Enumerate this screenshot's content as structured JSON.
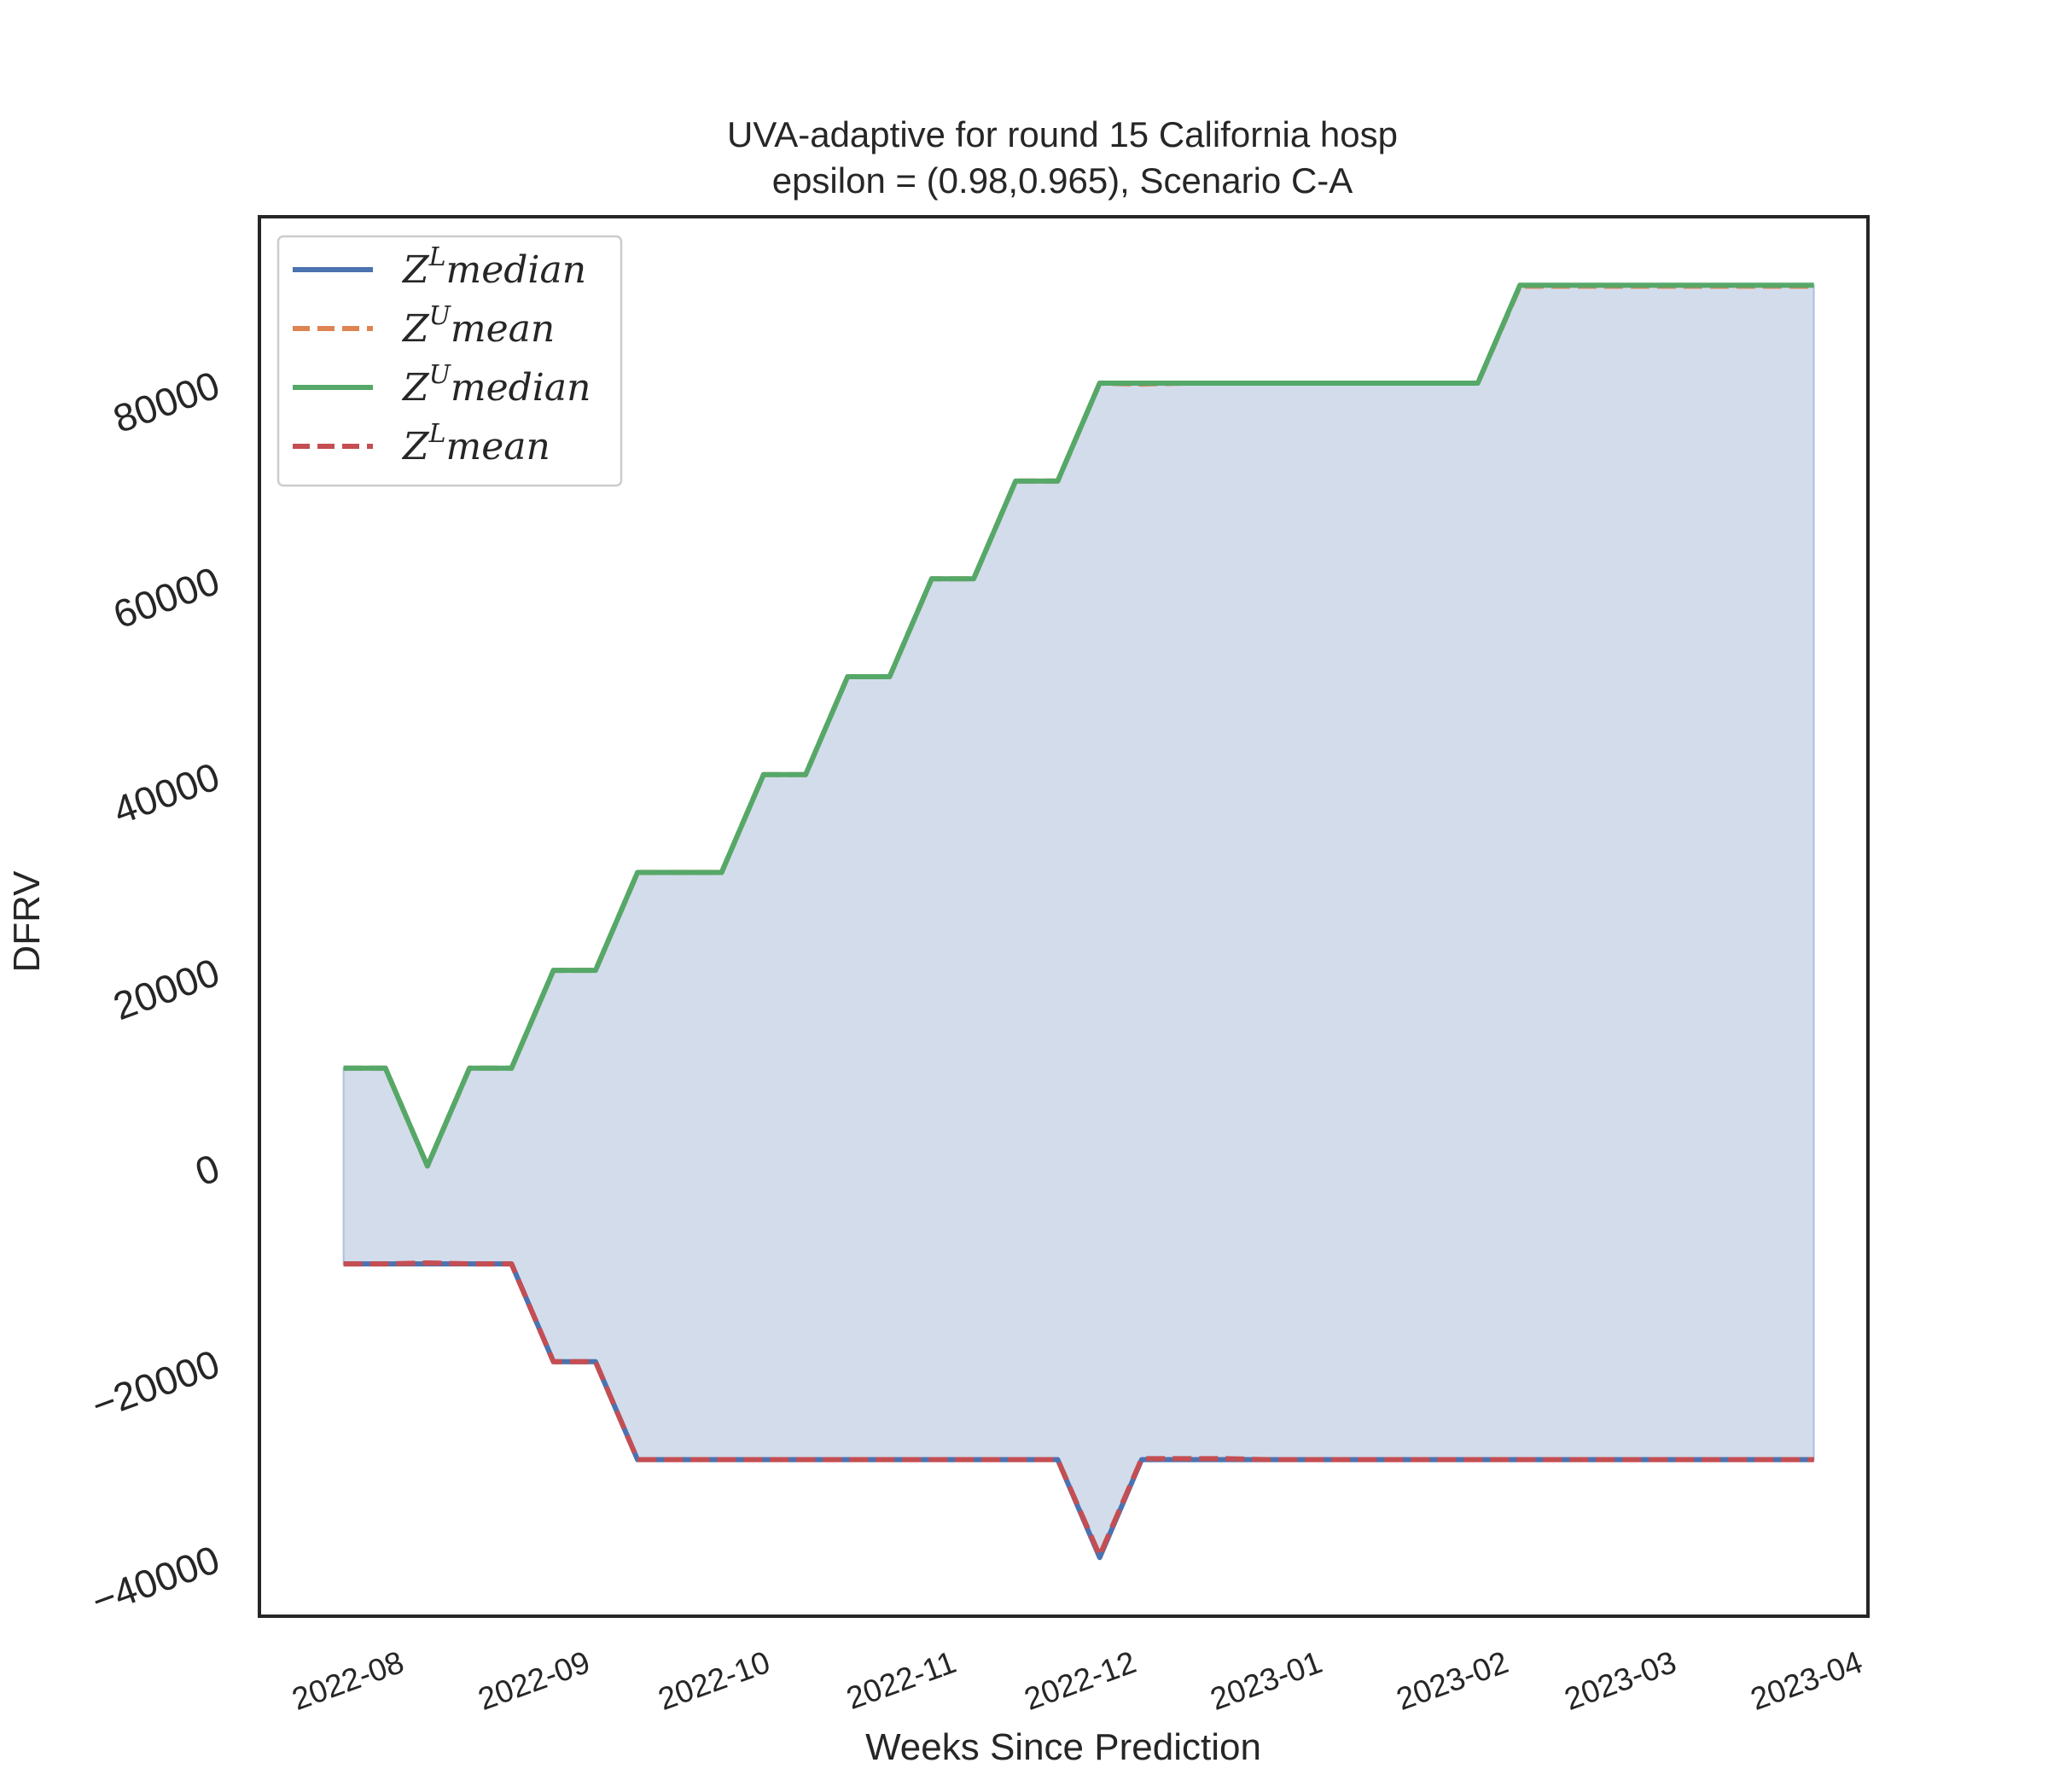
{
  "chart_data": {
    "type": "line",
    "title": [
      "UVA-adaptive for round 15 California  hosp",
      "epsilon = (0.98,0.965), Scenario C-A"
    ],
    "xlabel": "Weeks Since Prediction",
    "ylabel": "DFRV",
    "x_ticks": [
      "2022-08",
      "2022-09",
      "2022-10",
      "2022-11",
      "2022-12",
      "2023-01",
      "2023-02",
      "2023-03",
      "2023-04"
    ],
    "y_ticks": [
      -40000,
      -20000,
      0,
      20000,
      40000,
      60000,
      80000
    ],
    "xlim": [
      "2022-07-09",
      "2023-04-03"
    ],
    "ylim": [
      -46000,
      97000
    ],
    "grid": false,
    "legend_position": "top-left",
    "x": [
      "2022-07-23",
      "2022-07-30",
      "2022-08-06",
      "2022-08-13",
      "2022-08-20",
      "2022-08-27",
      "2022-09-03",
      "2022-09-10",
      "2022-09-17",
      "2022-09-24",
      "2022-10-01",
      "2022-10-08",
      "2022-10-15",
      "2022-10-22",
      "2022-10-29",
      "2022-11-05",
      "2022-11-12",
      "2022-11-19",
      "2022-11-26",
      "2022-12-03",
      "2022-12-10",
      "2022-12-17",
      "2022-12-24",
      "2022-12-31",
      "2023-01-07",
      "2023-01-14",
      "2023-01-21",
      "2023-01-28",
      "2023-02-04",
      "2023-02-11",
      "2023-02-18",
      "2023-02-25",
      "2023-03-04",
      "2023-03-11",
      "2023-03-18",
      "2023-03-25"
    ],
    "series": [
      {
        "name": "$Z^Lmedian$",
        "color": "#4c72b0",
        "style": "solid",
        "values": [
          -10000,
          -10000,
          -10000,
          -10000,
          -10000,
          -20000,
          -20000,
          -30000,
          -30000,
          -30000,
          -30000,
          -30000,
          -30000,
          -30000,
          -30000,
          -30000,
          -30000,
          -30000,
          -40000,
          -30000,
          -30000,
          -30000,
          -30000,
          -30000,
          -30000,
          -30000,
          -30000,
          -30000,
          -30000,
          -30000,
          -30000,
          -30000,
          -30000,
          -30000,
          -30000,
          -30000
        ]
      },
      {
        "name": "$Z^Umean$",
        "color": "#dd8452",
        "style": "dashed",
        "values": [
          10000,
          10000,
          0,
          10000,
          10000,
          20000,
          20000,
          30000,
          30000,
          30000,
          40000,
          40000,
          50000,
          50000,
          60000,
          60000,
          70000,
          70000,
          80000,
          79900,
          80000,
          80000,
          80000,
          80000,
          80000,
          80000,
          80000,
          80000,
          89900,
          89900,
          89900,
          89900,
          89900,
          89900,
          89900,
          89900
        ]
      },
      {
        "name": "$Z^Umedian$",
        "color": "#55a868",
        "style": "solid",
        "values": [
          10000,
          10000,
          0,
          10000,
          10000,
          20000,
          20000,
          30000,
          30000,
          30000,
          40000,
          40000,
          50000,
          50000,
          60000,
          60000,
          70000,
          70000,
          80000,
          80000,
          80000,
          80000,
          80000,
          80000,
          80000,
          80000,
          80000,
          80000,
          90000,
          90000,
          90000,
          90000,
          90000,
          90000,
          90000,
          90000
        ]
      },
      {
        "name": "$Z^Lmean$",
        "color": "#c44e52",
        "style": "dashed",
        "values": [
          -10000,
          -10000,
          -9900,
          -10000,
          -10000,
          -20000,
          -20000,
          -30000,
          -30000,
          -30000,
          -30000,
          -30000,
          -30000,
          -30000,
          -30000,
          -30000,
          -30000,
          -30000,
          -39800,
          -29900,
          -29900,
          -29900,
          -30000,
          -30000,
          -30000,
          -30000,
          -30000,
          -30000,
          -30000,
          -30000,
          -30000,
          -30000,
          -30000,
          -30000,
          -30000,
          -30000
        ]
      }
    ],
    "legend_labels": [
      {
        "base": "Z",
        "sup": "L",
        "rest": "median"
      },
      {
        "base": "Z",
        "sup": "U",
        "rest": "mean"
      },
      {
        "base": "Z",
        "sup": "U",
        "rest": "median"
      },
      {
        "base": "Z",
        "sup": "L",
        "rest": "mean"
      }
    ],
    "fill_between": {
      "lower": "$Z^Lmedian$",
      "upper": "$Z^Umedian$",
      "color": "#4c72b0",
      "alpha": 0.25
    }
  }
}
